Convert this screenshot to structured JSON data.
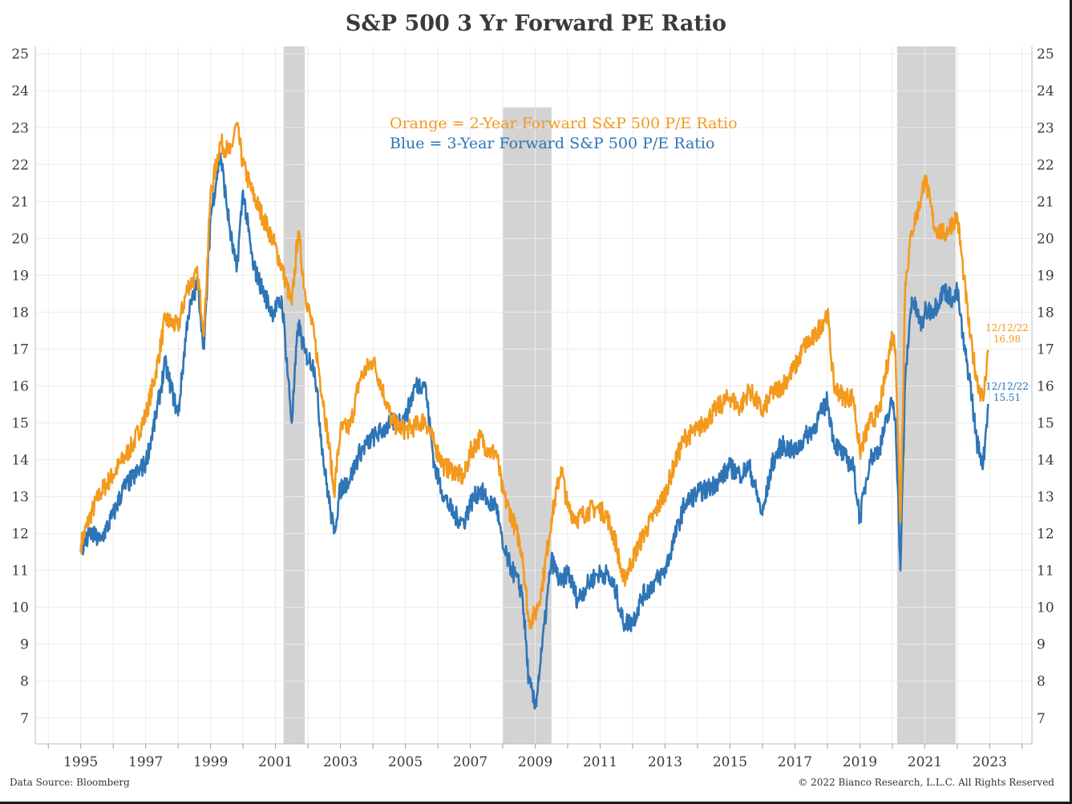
{
  "title": "S&P 500 3 Yr Forward PE Ratio",
  "footer": {
    "source": "Data Source: Bloomberg",
    "copyright": "© 2022 Bianco Research, L.L.C. All Rights Reserved"
  },
  "legend": {
    "orange": "Orange = 2-Year Forward S&P 500 P/E Ratio",
    "blue": "Blue = 3-Year Forward S&P 500 P/E Ratio"
  },
  "end_labels": {
    "orange": {
      "date": "12/12/22",
      "value": "16.98"
    },
    "blue": {
      "date": "12/12/22",
      "value": "15.51"
    }
  },
  "colors": {
    "orange": "#F39A1E",
    "blue": "#2E75B6",
    "recession": "#D3D3D3",
    "grid": "#EBEBEB",
    "text": "#3a3a3a"
  },
  "chart_data": {
    "type": "line",
    "title": "S&P 500 3 Yr Forward PE Ratio",
    "xlim": [
      1993.6,
      2024.3
    ],
    "ylim": [
      6.3,
      25.2
    ],
    "x_ticks": [
      1995,
      1997,
      1999,
      2001,
      2003,
      2005,
      2007,
      2009,
      2011,
      2013,
      2015,
      2017,
      2019,
      2021,
      2023
    ],
    "y_ticks": [
      7,
      8,
      9,
      10,
      11,
      12,
      13,
      14,
      15,
      16,
      17,
      18,
      19,
      20,
      21,
      22,
      23,
      24,
      25
    ],
    "y_axes": [
      "left",
      "right"
    ],
    "grid": true,
    "recession_bands": [
      [
        2001.25,
        2001.9
      ],
      [
        2008.0,
        2009.5
      ],
      [
        2020.15,
        2021.95
      ]
    ],
    "series": [
      {
        "name": "Orange = 2-Year Forward S&P 500 P/E Ratio",
        "color": "#F39A1E",
        "x": [
          1995.0,
          1995.3,
          1995.6,
          1996.0,
          1996.3,
          1996.6,
          1997.0,
          1997.3,
          1997.6,
          1998.0,
          1998.3,
          1998.6,
          1998.8,
          1999.0,
          1999.3,
          1999.6,
          1999.8,
          2000.0,
          2000.3,
          2000.6,
          2000.9,
          2001.2,
          2001.5,
          2001.7,
          2001.9,
          2002.2,
          2002.5,
          2002.7,
          2002.8,
          2003.0,
          2003.3,
          2003.6,
          2004.0,
          2004.3,
          2004.6,
          2005.0,
          2005.3,
          2005.6,
          2005.9,
          2006.2,
          2006.5,
          2006.8,
          2007.0,
          2007.3,
          2007.6,
          2007.8,
          2008.0,
          2008.3,
          2008.6,
          2008.8,
          2009.0,
          2009.2,
          2009.5,
          2009.8,
          2010.0,
          2010.3,
          2010.6,
          2010.9,
          2011.2,
          2011.5,
          2011.7,
          2012.0,
          2012.3,
          2012.6,
          2013.0,
          2013.3,
          2013.6,
          2014.0,
          2014.3,
          2014.6,
          2015.0,
          2015.3,
          2015.6,
          2016.0,
          2016.3,
          2016.6,
          2017.0,
          2017.3,
          2017.6,
          2018.0,
          2018.2,
          2018.5,
          2018.8,
          2019.0,
          2019.3,
          2019.6,
          2020.0,
          2020.1,
          2020.25,
          2020.4,
          2020.6,
          2020.9,
          2021.0,
          2021.3,
          2021.6,
          2021.9,
          2022.0,
          2022.2,
          2022.4,
          2022.6,
          2022.8,
          2022.95
        ],
        "y": [
          11.7,
          12.5,
          13.1,
          13.6,
          14.0,
          14.4,
          15.2,
          16.3,
          17.8,
          17.6,
          18.7,
          19.0,
          17.5,
          21.2,
          22.6,
          22.3,
          23.1,
          22.0,
          21.2,
          20.6,
          20.0,
          19.2,
          18.2,
          20.2,
          18.6,
          17.3,
          15.4,
          14.0,
          13.1,
          14.8,
          14.9,
          16.2,
          16.7,
          15.9,
          15.0,
          14.8,
          14.9,
          15.1,
          14.4,
          13.8,
          13.7,
          13.5,
          14.2,
          14.6,
          14.2,
          14.2,
          13.1,
          12.4,
          11.5,
          9.6,
          9.8,
          10.5,
          12.4,
          13.8,
          12.7,
          12.4,
          12.6,
          12.7,
          12.5,
          11.7,
          10.7,
          11.3,
          11.9,
          12.4,
          13.1,
          13.9,
          14.6,
          14.8,
          15.1,
          15.4,
          15.7,
          15.4,
          15.9,
          15.3,
          15.8,
          16.0,
          16.5,
          17.1,
          17.3,
          18.0,
          16.0,
          15.7,
          15.7,
          14.2,
          15.0,
          15.3,
          17.4,
          17.0,
          12.3,
          18.8,
          20.2,
          21.1,
          21.7,
          20.3,
          20.1,
          20.5,
          20.6,
          19.0,
          17.3,
          16.2,
          15.6,
          16.98
        ]
      },
      {
        "name": "Blue = 3-Year Forward S&P 500 P/E Ratio",
        "color": "#2E75B6",
        "x": [
          1995.0,
          1995.3,
          1995.6,
          1996.0,
          1996.3,
          1996.6,
          1997.0,
          1997.3,
          1997.6,
          1998.0,
          1998.3,
          1998.6,
          1998.8,
          1999.0,
          1999.3,
          1999.6,
          1999.8,
          2000.0,
          2000.3,
          2000.6,
          2000.9,
          2001.2,
          2001.5,
          2001.7,
          2001.9,
          2002.2,
          2002.5,
          2002.7,
          2002.8,
          2003.0,
          2003.3,
          2003.6,
          2004.0,
          2004.3,
          2004.6,
          2005.0,
          2005.3,
          2005.6,
          2005.9,
          2006.2,
          2006.5,
          2006.8,
          2007.0,
          2007.3,
          2007.6,
          2007.8,
          2008.0,
          2008.3,
          2008.6,
          2008.8,
          2009.0,
          2009.2,
          2009.5,
          2009.8,
          2010.0,
          2010.3,
          2010.6,
          2010.9,
          2011.2,
          2011.5,
          2011.7,
          2012.0,
          2012.3,
          2012.6,
          2013.0,
          2013.3,
          2013.6,
          2014.0,
          2014.3,
          2014.6,
          2015.0,
          2015.3,
          2015.6,
          2016.0,
          2016.3,
          2016.6,
          2017.0,
          2017.3,
          2017.6,
          2018.0,
          2018.2,
          2018.5,
          2018.8,
          2019.0,
          2019.3,
          2019.6,
          2020.0,
          2020.1,
          2020.25,
          2020.4,
          2020.6,
          2020.9,
          2021.0,
          2021.3,
          2021.6,
          2021.9,
          2022.0,
          2022.2,
          2022.4,
          2022.6,
          2022.8,
          2022.95
        ],
        "y": [
          11.5,
          12.0,
          11.8,
          12.5,
          13.2,
          13.5,
          13.9,
          15.1,
          16.6,
          15.2,
          17.9,
          18.8,
          17.0,
          20.6,
          22.3,
          20.2,
          19.1,
          21.3,
          19.3,
          18.6,
          18.0,
          18.3,
          15.0,
          17.7,
          16.9,
          16.5,
          13.8,
          12.6,
          12.0,
          13.2,
          13.5,
          14.2,
          14.6,
          14.8,
          15.0,
          15.1,
          16.0,
          16.1,
          13.8,
          13.0,
          12.5,
          12.3,
          12.8,
          13.2,
          12.8,
          12.8,
          11.6,
          11.0,
          10.4,
          8.0,
          7.3,
          8.8,
          11.3,
          10.6,
          11.0,
          10.2,
          10.6,
          10.9,
          10.9,
          10.4,
          9.6,
          9.6,
          10.3,
          10.6,
          11.0,
          11.9,
          12.8,
          13.1,
          13.2,
          13.4,
          13.8,
          13.6,
          13.8,
          12.5,
          13.9,
          14.4,
          14.2,
          14.6,
          14.9,
          15.6,
          14.5,
          14.1,
          13.8,
          12.4,
          14.0,
          14.3,
          15.6,
          15.1,
          11.0,
          16.2,
          18.4,
          17.6,
          18.0,
          18.1,
          18.6,
          18.3,
          18.6,
          17.1,
          16.1,
          14.5,
          13.9,
          15.51
        ]
      }
    ]
  }
}
